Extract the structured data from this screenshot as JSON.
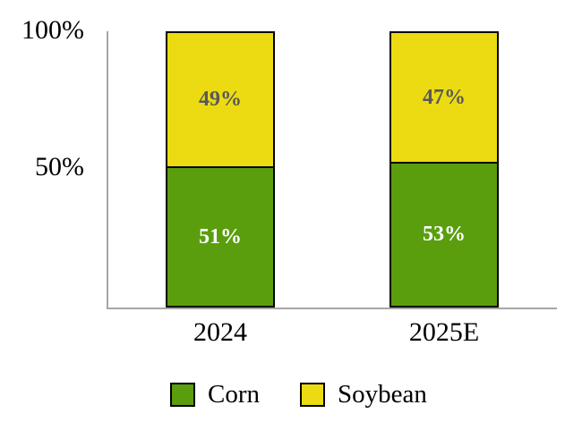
{
  "chart_data": {
    "type": "bar",
    "stacked": true,
    "orientation": "vertical",
    "title": "",
    "categories": [
      "2024",
      "2025E"
    ],
    "series": [
      {
        "name": "Corn",
        "color": "#5a9e0e",
        "label_color": "#ffffff",
        "values": [
          51,
          53
        ],
        "labels": [
          "51%",
          "53%"
        ]
      },
      {
        "name": "Soybean",
        "color": "#ecdb12",
        "label_color": "#595959",
        "values": [
          49,
          47
        ],
        "labels": [
          "49%",
          "47%"
        ]
      }
    ],
    "y_ticks": [
      {
        "label": "100%",
        "value": 100
      },
      {
        "label": "50%",
        "value": 50
      }
    ],
    "ylim": [
      0,
      100
    ],
    "grid": false,
    "legend_position": "bottom",
    "axis_color": "#a6a6a6",
    "bar_border_color": "#000000",
    "background_color": "#ffffff"
  }
}
